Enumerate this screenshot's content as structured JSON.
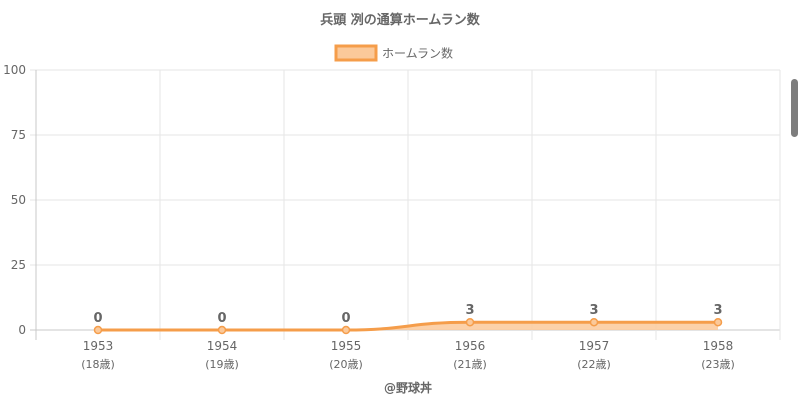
{
  "chart_data": {
    "type": "area",
    "title": "兵頭 冽の通算ホームラン数",
    "categories": [
      "1953",
      "1954",
      "1955",
      "1956",
      "1957",
      "1958"
    ],
    "age_labels": [
      "(18歳)",
      "(19歳)",
      "(20歳)",
      "(21歳)",
      "(22歳)",
      "(23歳)"
    ],
    "series": [
      {
        "name": "ホームラン数",
        "values": [
          0,
          0,
          0,
          3,
          3,
          3
        ],
        "color": "#f59d4a",
        "fill": "#fbc99a"
      }
    ],
    "data_labels": [
      "0",
      "0",
      "0",
      "3",
      "3",
      "3"
    ],
    "ylim": [
      0,
      100
    ],
    "yticks": [
      0,
      25,
      50,
      75,
      100
    ],
    "grid": true,
    "legend_position": "top",
    "credit": "@野球丼"
  }
}
